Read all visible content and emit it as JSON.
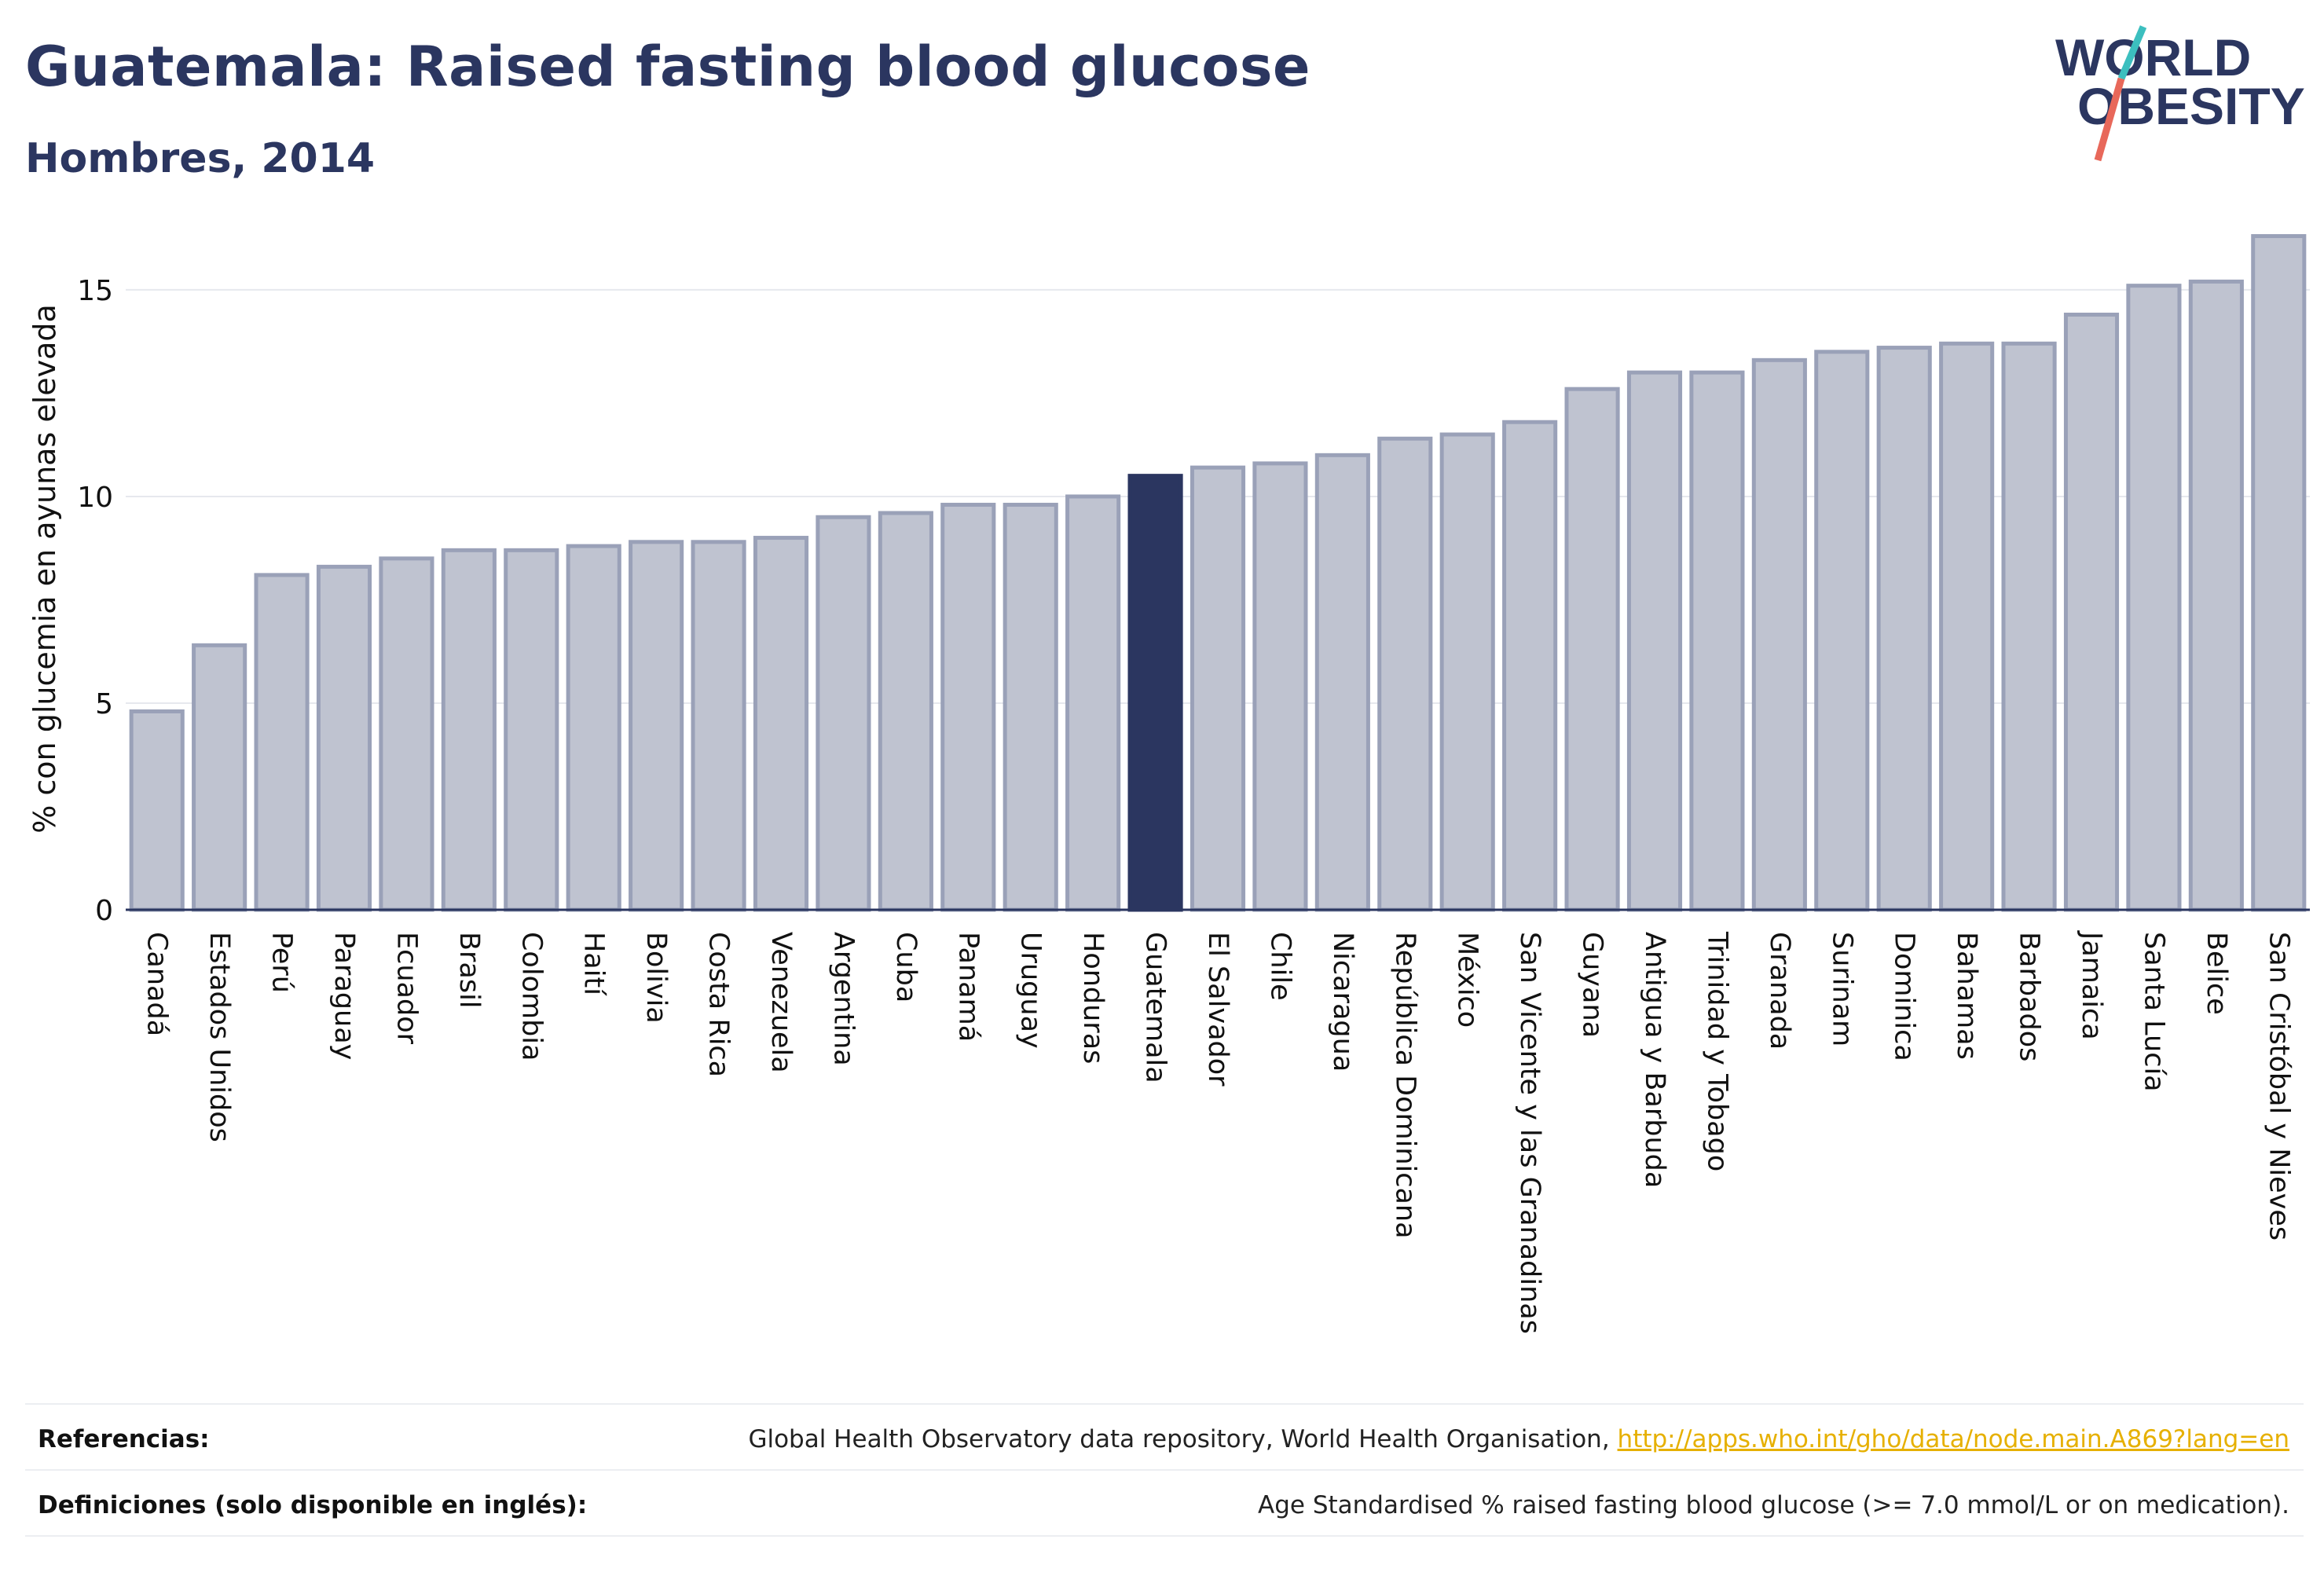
{
  "header": {
    "title": "Guatemala: Raised fasting blood glucose",
    "subtitle": "Hombres, 2014"
  },
  "logo": {
    "line1": "WORLD",
    "line2": "OBESITY",
    "colors": {
      "text": "#2b3660",
      "slash_top": "#3cbfbf",
      "slash_bottom": "#e8685a"
    }
  },
  "colors": {
    "bar": "#bfc3d0",
    "bar_border": "#9aa1b8",
    "highlight": "#2b3660",
    "grid": "#e6e8ee",
    "axis": "#2b3660"
  },
  "chart_data": {
    "type": "bar",
    "title": "Guatemala: Raised fasting blood glucose",
    "subtitle": "Hombres, 2014",
    "xlabel": "",
    "ylabel": "% con glucemia en ayunas elevada",
    "ylim": [
      0,
      16.5
    ],
    "yticks": [
      0,
      5,
      10,
      15
    ],
    "grid": true,
    "highlight": "Guatemala",
    "categories": [
      "Canadá",
      "Estados Unidos",
      "Perú",
      "Paraguay",
      "Ecuador",
      "Brasil",
      "Colombia",
      "Haití",
      "Bolivia",
      "Costa Rica",
      "Venezuela",
      "Argentina",
      "Cuba",
      "Panamá",
      "Uruguay",
      "Honduras",
      "Guatemala",
      "El Salvador",
      "Chile",
      "Nicaragua",
      "República Dominicana",
      "México",
      "San Vicente y las Granadinas",
      "Guyana",
      "Antigua y Barbuda",
      "Trinidad y Tobago",
      "Granada",
      "Surinam",
      "Dominica",
      "Bahamas",
      "Barbados",
      "Jamaica",
      "Santa Lucía",
      "Belice",
      "San Cristóbal y Nieves"
    ],
    "values": [
      4.8,
      6.4,
      8.1,
      8.3,
      8.5,
      8.7,
      8.7,
      8.8,
      8.9,
      8.9,
      9.0,
      9.5,
      9.6,
      9.8,
      9.8,
      10.0,
      10.5,
      10.7,
      10.8,
      11.0,
      11.4,
      11.5,
      11.8,
      12.6,
      13.0,
      13.0,
      13.3,
      13.5,
      13.6,
      13.7,
      13.7,
      14.4,
      15.1,
      15.2,
      16.3
    ]
  },
  "footer": {
    "references_label": "Referencias:",
    "references_text": "Global Health Observatory data repository, World Health Organisation, ",
    "references_link": "http://apps.who.int/gho/data/node.main.A869?lang=en",
    "definitions_label": "Definiciones (solo disponible en inglés):",
    "definitions_text": "Age Standardised % raised fasting blood glucose (>= 7.0 mmol/L or on medication)."
  }
}
